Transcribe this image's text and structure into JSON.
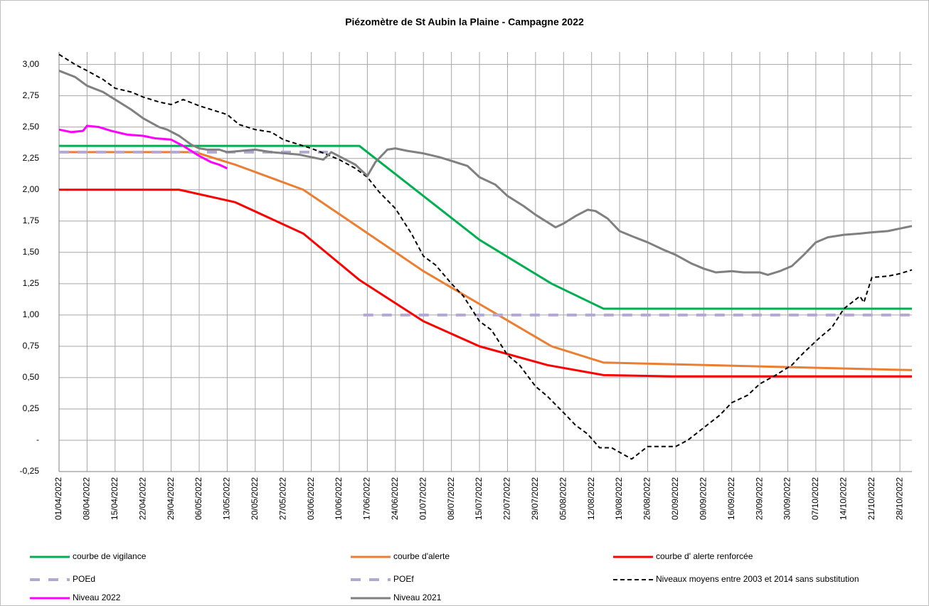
{
  "chart_data": {
    "type": "line",
    "title": "Piézomètre de St Aubin la Plaine - Campagne 2022",
    "xlim": [
      "01/04/2022",
      "31/10/2022"
    ],
    "xticks": [
      "01/04/2022",
      "08/04/2022",
      "15/04/2022",
      "22/04/2022",
      "29/04/2022",
      "06/05/2022",
      "13/05/2022",
      "20/05/2022",
      "27/05/2022",
      "03/06/2022",
      "10/06/2022",
      "17/06/2022",
      "24/06/2022",
      "01/07/2022",
      "08/07/2022",
      "15/07/2022",
      "22/07/2022",
      "29/07/2022",
      "05/08/2022",
      "12/08/2022",
      "19/08/2022",
      "26/08/2022",
      "02/09/2022",
      "09/09/2022",
      "16/09/2022",
      "23/09/2022",
      "30/09/2022",
      "07/10/2022",
      "14/10/2022",
      "21/10/2022",
      "28/10/2022"
    ],
    "ylim": [
      -0.25,
      3.1
    ],
    "yticks": [
      {
        "value": -0.25,
        "label": "-0,25"
      },
      {
        "value": 0,
        "label": "-"
      },
      {
        "value": 0.25,
        "label": "0,25"
      },
      {
        "value": 0.5,
        "label": "0,50"
      },
      {
        "value": 0.75,
        "label": "0,75"
      },
      {
        "value": 1,
        "label": "1,00"
      },
      {
        "value": 1.25,
        "label": "1,25"
      },
      {
        "value": 1.5,
        "label": "1,50"
      },
      {
        "value": 1.75,
        "label": "1,75"
      },
      {
        "value": 2,
        "label": "2,00"
      },
      {
        "value": 2.25,
        "label": "2,25"
      },
      {
        "value": 2.5,
        "label": "2,50"
      },
      {
        "value": 2.75,
        "label": "2,75"
      },
      {
        "value": 3,
        "label": "3,00"
      }
    ],
    "grid": true,
    "legend": "bottom",
    "series": [
      {
        "name": "courbe de vigilance",
        "color": "#00b050",
        "linestyle": "solid",
        "x": [
          "01/04/2022",
          "15/06/2022",
          "01/07/2022",
          "15/07/2022",
          "02/08/2022",
          "15/08/2022",
          "31/10/2022"
        ],
        "values": [
          2.35,
          2.35,
          1.95,
          1.6,
          1.25,
          1.05,
          1.05
        ]
      },
      {
        "name": "courbe d'alerte",
        "color": "#ed7d31",
        "linestyle": "solid",
        "x": [
          "01/04/2022",
          "05/05/2022",
          "15/05/2022",
          "01/06/2022",
          "01/07/2022",
          "02/08/2022",
          "15/08/2022",
          "31/10/2022"
        ],
        "values": [
          2.3,
          2.3,
          2.2,
          2.0,
          1.35,
          0.75,
          0.62,
          0.56
        ]
      },
      {
        "name": "courbe d' alerte renforcée",
        "color": "#ff0000",
        "linestyle": "solid",
        "x": [
          "01/04/2022",
          "01/05/2022",
          "15/05/2022",
          "01/06/2022",
          "15/06/2022",
          "01/07/2022",
          "15/07/2022",
          "01/08/2022",
          "15/08/2022",
          "01/09/2022",
          "31/10/2022"
        ],
        "values": [
          2.0,
          2.0,
          1.9,
          1.65,
          1.28,
          0.95,
          0.75,
          0.6,
          0.52,
          0.51,
          0.51
        ]
      },
      {
        "name": "POEd",
        "color": "#b4a7d6",
        "linestyle": "long-dashed",
        "x": [
          "01/04/2022",
          "09/06/2022"
        ],
        "values": [
          2.3,
          2.3
        ]
      },
      {
        "name": "POEf",
        "color": "#b4a7d6",
        "linestyle": "long-dashed",
        "x": [
          "16/06/2022",
          "31/10/2022"
        ],
        "values": [
          1.0,
          1.0
        ]
      },
      {
        "name": "Niveaux moyens entre 2003 et 2014 sans substitution",
        "color": "#000000",
        "linestyle": "dashed",
        "x": [
          "01/04/2022",
          "05/04/2022",
          "08/04/2022",
          "12/04/2022",
          "15/04/2022",
          "19/04/2022",
          "22/04/2022",
          "26/04/2022",
          "29/04/2022",
          "02/05/2022",
          "06/05/2022",
          "10/05/2022",
          "13/05/2022",
          "16/05/2022",
          "20/05/2022",
          "24/05/2022",
          "27/05/2022",
          "31/05/2022",
          "03/06/2022",
          "07/06/2022",
          "10/06/2022",
          "14/06/2022",
          "17/06/2022",
          "20/06/2022",
          "24/06/2022",
          "28/06/2022",
          "01/07/2022",
          "04/07/2022",
          "08/07/2022",
          "11/07/2022",
          "15/07/2022",
          "18/07/2022",
          "22/07/2022",
          "25/07/2022",
          "29/07/2022",
          "01/08/2022",
          "05/08/2022",
          "08/08/2022",
          "11/08/2022",
          "14/08/2022",
          "17/08/2022",
          "22/08/2022",
          "26/08/2022",
          "02/09/2022",
          "05/09/2022",
          "09/09/2022",
          "13/09/2022",
          "16/09/2022",
          "20/09/2022",
          "23/09/2022",
          "27/09/2022",
          "01/10/2022",
          "04/10/2022",
          "08/10/2022",
          "11/10/2022",
          "14/10/2022",
          "18/10/2022",
          "19/10/2022",
          "21/10/2022",
          "25/10/2022",
          "28/10/2022",
          "31/10/2022"
        ],
        "values": [
          3.08,
          3.0,
          2.95,
          2.88,
          2.81,
          2.78,
          2.74,
          2.7,
          2.68,
          2.72,
          2.67,
          2.63,
          2.6,
          2.52,
          2.48,
          2.46,
          2.4,
          2.36,
          2.33,
          2.28,
          2.24,
          2.17,
          2.1,
          1.98,
          1.85,
          1.65,
          1.47,
          1.4,
          1.25,
          1.15,
          0.95,
          0.88,
          0.68,
          0.6,
          0.43,
          0.35,
          0.22,
          0.12,
          0.05,
          -0.06,
          -0.06,
          -0.15,
          -0.05,
          -0.05,
          0.0,
          0.1,
          0.2,
          0.3,
          0.36,
          0.45,
          0.52,
          0.6,
          0.7,
          0.82,
          0.9,
          1.05,
          1.15,
          1.1,
          1.3,
          1.31,
          1.33,
          1.36
        ]
      },
      {
        "name": "Niveau 2022",
        "color": "#ff00ff",
        "linestyle": "solid",
        "x": [
          "01/04/2022",
          "04/04/2022",
          "07/04/2022",
          "08/04/2022",
          "11/04/2022",
          "14/04/2022",
          "18/04/2022",
          "22/04/2022",
          "25/04/2022",
          "29/04/2022",
          "02/05/2022",
          "06/05/2022",
          "09/05/2022",
          "11/05/2022",
          "13/05/2022"
        ],
        "values": [
          2.48,
          2.46,
          2.47,
          2.51,
          2.5,
          2.47,
          2.44,
          2.43,
          2.41,
          2.4,
          2.35,
          2.27,
          2.22,
          2.2,
          2.17
        ]
      },
      {
        "name": "Niveau 2021",
        "color": "#808080",
        "linestyle": "solid",
        "x": [
          "01/04/2022",
          "05/04/2022",
          "08/04/2022",
          "12/04/2022",
          "15/04/2022",
          "19/04/2022",
          "22/04/2022",
          "26/04/2022",
          "28/04/2022",
          "01/05/2022",
          "04/05/2022",
          "06/05/2022",
          "08/05/2022",
          "11/05/2022",
          "13/05/2022",
          "20/05/2022",
          "24/05/2022",
          "31/05/2022",
          "06/06/2022",
          "08/06/2022",
          "14/06/2022",
          "17/06/2022",
          "19/06/2022",
          "22/06/2022",
          "24/06/2022",
          "27/06/2022",
          "01/07/2022",
          "05/07/2022",
          "08/07/2022",
          "12/07/2022",
          "15/07/2022",
          "19/07/2022",
          "22/07/2022",
          "26/07/2022",
          "29/07/2022",
          "01/08/2022",
          "03/08/2022",
          "05/08/2022",
          "08/08/2022",
          "11/08/2022",
          "13/08/2022",
          "16/08/2022",
          "19/08/2022",
          "22/08/2022",
          "26/08/2022",
          "30/08/2022",
          "02/09/2022",
          "06/09/2022",
          "09/09/2022",
          "12/09/2022",
          "16/09/2022",
          "19/09/2022",
          "23/09/2022",
          "25/09/2022",
          "28/09/2022",
          "01/10/2022",
          "04/10/2022",
          "07/10/2022",
          "10/10/2022",
          "14/10/2022",
          "18/10/2022",
          "21/10/2022",
          "25/10/2022",
          "28/10/2022",
          "31/10/2022"
        ],
        "values": [
          2.95,
          2.9,
          2.83,
          2.78,
          2.72,
          2.64,
          2.57,
          2.5,
          2.48,
          2.43,
          2.36,
          2.33,
          2.32,
          2.32,
          2.3,
          2.32,
          2.3,
          2.28,
          2.24,
          2.3,
          2.2,
          2.11,
          2.22,
          2.32,
          2.33,
          2.31,
          2.29,
          2.26,
          2.23,
          2.19,
          2.1,
          2.04,
          1.95,
          1.87,
          1.8,
          1.74,
          1.7,
          1.73,
          1.79,
          1.84,
          1.83,
          1.77,
          1.67,
          1.63,
          1.58,
          1.52,
          1.48,
          1.41,
          1.37,
          1.34,
          1.35,
          1.34,
          1.34,
          1.32,
          1.35,
          1.39,
          1.48,
          1.58,
          1.62,
          1.64,
          1.65,
          1.66,
          1.67,
          1.69,
          1.71
        ]
      }
    ]
  }
}
